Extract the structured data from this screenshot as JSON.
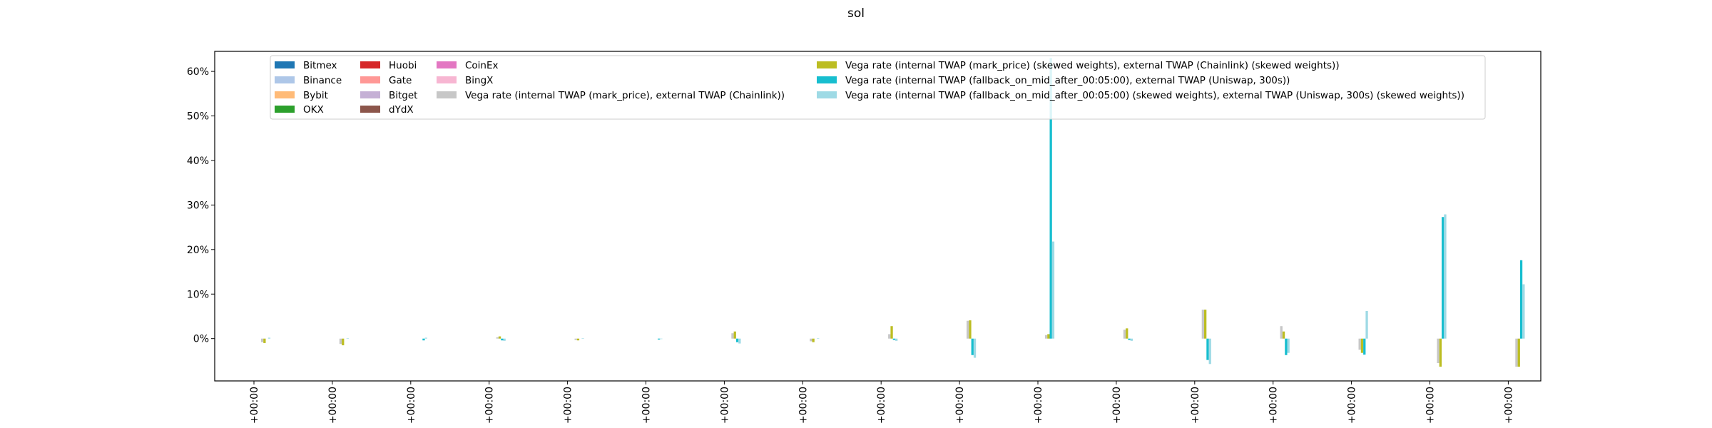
{
  "chart_data": {
    "type": "bar",
    "title": "sol",
    "xlabel": "",
    "ylabel": "",
    "y_tick_labels": [
      "0%",
      "10%",
      "20%",
      "30%",
      "40%",
      "50%",
      "60%"
    ],
    "y_ticks": [
      0,
      10,
      20,
      30,
      40,
      50,
      60
    ],
    "ylim": [
      -9.5,
      64.5
    ],
    "grid": false,
    "legend_placement": "top",
    "x_tick_label": "+00:00",
    "categories": [
      "+00:00",
      "+00:00",
      "+00:00",
      "+00:00",
      "+00:00",
      "+00:00",
      "+00:00",
      "+00:00",
      "+00:00",
      "+00:00",
      "+00:00",
      "+00:00",
      "+00:00",
      "+00:00",
      "+00:00",
      "+00:00",
      "+00:00"
    ],
    "series": [
      {
        "name": "Bitmex",
        "color": "#1f77b4",
        "values": [
          0,
          0,
          0,
          0,
          0,
          0,
          0,
          0,
          0,
          0,
          0,
          0,
          0,
          0,
          0,
          0,
          0
        ]
      },
      {
        "name": "Binance",
        "color": "#aec7e8",
        "values": [
          0,
          0,
          0,
          0,
          0,
          0,
          0,
          0,
          0,
          0,
          0,
          0,
          0,
          0,
          0,
          0,
          0
        ]
      },
      {
        "name": "Bybit",
        "color": "#ffbb78",
        "values": [
          0,
          0,
          0,
          0,
          0,
          0,
          0,
          0,
          0,
          0,
          0,
          0,
          0,
          0,
          0,
          0,
          0
        ]
      },
      {
        "name": "OKX",
        "color": "#2ca02c",
        "values": [
          0,
          0,
          0,
          0,
          0,
          0,
          0,
          0,
          0,
          0,
          0,
          0,
          0,
          0,
          0,
          0,
          0
        ]
      },
      {
        "name": "Huobi",
        "color": "#d62728",
        "values": [
          0,
          0,
          0,
          0,
          0,
          0,
          0,
          0,
          0,
          0,
          0,
          0,
          0,
          0,
          0,
          0,
          0
        ]
      },
      {
        "name": "Gate",
        "color": "#ff9896",
        "values": [
          0,
          0,
          0,
          0,
          0,
          0,
          0,
          0,
          0,
          0,
          0,
          0,
          0,
          0,
          0,
          0,
          0
        ]
      },
      {
        "name": "Bitget",
        "color": "#c5b0d5",
        "values": [
          0,
          0,
          0,
          0,
          0,
          0,
          0,
          0,
          0,
          0,
          0,
          0,
          0,
          0,
          0,
          0,
          0
        ]
      },
      {
        "name": "dYdX",
        "color": "#8c564b",
        "values": [
          0,
          0,
          0,
          0,
          0,
          0,
          0,
          0,
          0,
          0,
          0,
          0,
          0,
          0,
          0,
          0,
          0
        ]
      },
      {
        "name": "CoinEx",
        "color": "#e377c2",
        "values": [
          0,
          0,
          0,
          0,
          0,
          0,
          0,
          0,
          0,
          0,
          0,
          0,
          0,
          0,
          0,
          0,
          0
        ]
      },
      {
        "name": "BingX",
        "color": "#f7b6d2",
        "values": [
          0,
          0,
          0,
          0,
          0,
          0,
          0,
          0,
          0,
          0,
          0,
          0,
          0,
          0,
          0,
          0,
          0
        ]
      },
      {
        "name": "Vega rate (internal TWAP (mark_price), external TWAP (Chainlink))",
        "color": "#c7c7c7",
        "values": [
          -0.8,
          -1.2,
          0,
          0.3,
          -0.3,
          0,
          1.2,
          -0.6,
          1.0,
          4.0,
          0.8,
          2.0,
          6.5,
          2.8,
          -2.5,
          -5.5,
          -6.3
        ]
      },
      {
        "name": "Vega rate (internal TWAP (mark_price) (skewed weights), external TWAP (Chainlink) (skewed weights))",
        "color": "#bcbd22",
        "values": [
          -1.0,
          -1.5,
          0,
          0.5,
          -0.4,
          0,
          1.6,
          -0.8,
          2.8,
          4.1,
          1.0,
          2.3,
          6.5,
          1.6,
          -3.2,
          -6.3,
          -6.3
        ]
      },
      {
        "name": "Vega rate (internal TWAP (fallback_on_mid_after_00:05:00), external TWAP (Uniswap, 300s))",
        "color": "#17becf",
        "values": [
          0,
          0,
          -0.4,
          -0.4,
          0,
          -0.2,
          -0.8,
          0,
          -0.3,
          -3.7,
          63.0,
          -0.3,
          -4.8,
          -3.7,
          -3.6,
          27.3,
          17.6
        ]
      },
      {
        "name": "Vega rate (internal TWAP (fallback_on_mid_after_00:05:00) (skewed weights), external TWAP (Uniswap, 300s) (skewed weights))",
        "color": "#9edae5",
        "values": [
          0.2,
          0.1,
          0.2,
          -0.5,
          0.1,
          -0.1,
          -1.1,
          0.1,
          -0.5,
          -4.3,
          21.8,
          -0.5,
          -5.7,
          -3.2,
          6.2,
          27.9,
          12.2
        ]
      }
    ]
  }
}
